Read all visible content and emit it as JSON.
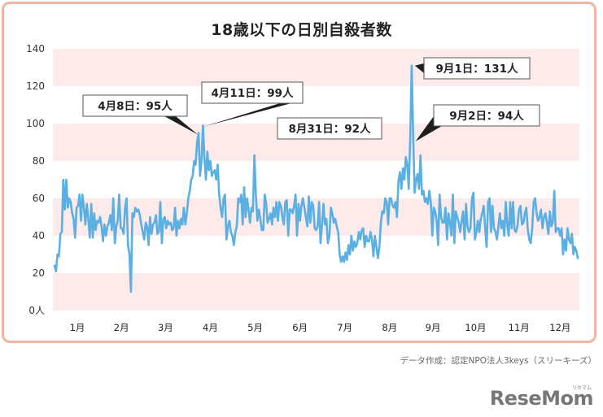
{
  "chart_data": {
    "type": "line",
    "title": "18歳以下の日別自殺者数",
    "xlabel": "",
    "ylabel": "人",
    "ylim": [
      0,
      140
    ],
    "yticks": [
      0,
      20,
      40,
      60,
      80,
      100,
      120,
      140
    ],
    "ytick_labels": [
      "0人",
      "20",
      "40",
      "60",
      "80",
      "100",
      "120",
      "140"
    ],
    "x_categories": [
      "1月",
      "2月",
      "3月",
      "4月",
      "5月",
      "6月",
      "7月",
      "8月",
      "9月",
      "10月",
      "11月",
      "12月"
    ],
    "grid": "alternating horizontal bands (pink/white) every 20",
    "legend": null,
    "series": [
      {
        "name": "18歳以下の日別自殺者数",
        "color": "#5aafe3",
        "monthly_daily_values": {
          "1": [
            24,
            21,
            30,
            29,
            41,
            42,
            70,
            54,
            70,
            55,
            60,
            58,
            52,
            49,
            39,
            55,
            56,
            62,
            48,
            62,
            55,
            46,
            57,
            49,
            39,
            57,
            39,
            52,
            43,
            48,
            47
          ],
          "2": [
            50,
            45,
            37,
            46,
            40,
            45,
            47,
            51,
            43,
            60,
            36,
            45,
            48,
            62,
            44,
            44,
            41,
            55,
            60,
            35,
            30,
            10,
            52,
            50,
            55,
            53,
            54,
            51,
            46
          ],
          "3": [
            42,
            38,
            47,
            45,
            35,
            50,
            41,
            46,
            47,
            51,
            41,
            42,
            58,
            36,
            49,
            50,
            44,
            48,
            46,
            47,
            43,
            44,
            55,
            40,
            48,
            44,
            49,
            46,
            55,
            46,
            52
          ],
          "4": [
            60,
            64,
            70,
            72,
            80,
            78,
            90,
            95,
            72,
            80,
            99,
            82,
            70,
            85,
            75,
            80,
            72,
            74,
            75,
            70,
            78,
            62,
            55,
            50,
            60,
            62,
            38,
            45,
            48,
            42
          ],
          "5": [
            40,
            35,
            42,
            45,
            60,
            58,
            62,
            46,
            66,
            50,
            60,
            54,
            47,
            55,
            53,
            83,
            62,
            48,
            54,
            49,
            43,
            43,
            62,
            57,
            47,
            49,
            52,
            46,
            55,
            50,
            58
          ],
          "6": [
            48,
            58,
            56,
            50,
            46,
            58,
            59,
            40,
            54,
            54,
            52,
            56,
            62,
            40,
            57,
            48,
            56,
            60,
            55,
            50,
            45,
            61,
            47,
            58,
            56,
            44,
            43,
            45,
            58,
            36
          ],
          "7": [
            46,
            57,
            46,
            49,
            36,
            40,
            55,
            52,
            47,
            49,
            45,
            42,
            30,
            26,
            29,
            26,
            31,
            27,
            35,
            30,
            40,
            32,
            37,
            34,
            36,
            42,
            38,
            43,
            44,
            34,
            40
          ],
          "8": [
            37,
            37,
            42,
            38,
            29,
            40,
            34,
            28,
            34,
            47,
            53,
            52,
            60,
            58,
            46,
            60,
            60,
            56,
            55,
            58,
            50,
            69,
            74,
            65,
            76,
            70,
            82,
            78,
            65,
            92
          ],
          "9": [
            131,
            94,
            63,
            70,
            73,
            65,
            83,
            62,
            64,
            58,
            60,
            57,
            64,
            58,
            40,
            55,
            53,
            48,
            35,
            62,
            50,
            47,
            47,
            55,
            38,
            52,
            47,
            40,
            62
          ],
          "10": [
            36,
            53,
            50,
            47,
            42,
            48,
            53,
            38,
            57,
            45,
            42,
            44,
            60,
            63,
            38,
            42,
            48,
            42,
            49,
            52,
            56,
            44,
            34,
            58,
            60,
            42,
            56,
            44,
            42
          ],
          "11": [
            38,
            45,
            52,
            44,
            48,
            40,
            58,
            46,
            40,
            58,
            44,
            58,
            43,
            42,
            45,
            54,
            56,
            46,
            47,
            52,
            55,
            43,
            38,
            36,
            44,
            58,
            60,
            52,
            48,
            50
          ],
          "12": [
            54,
            44,
            50,
            52,
            47,
            41,
            53,
            45,
            47,
            64,
            42,
            44,
            44,
            40,
            44,
            30,
            38,
            32,
            44,
            38,
            36,
            41,
            30,
            34,
            32,
            28
          ]
        },
        "annotations": [
          {
            "label": "4月8日：95人",
            "date": "4/8",
            "value": 95
          },
          {
            "label": "4月11日：99人",
            "date": "4/11",
            "value": 99
          },
          {
            "label": "8月31日：92人",
            "date": "8/31",
            "value": 92
          },
          {
            "label": "9月1日：131人",
            "date": "9/1",
            "value": 131
          },
          {
            "label": "9月2日：94人",
            "date": "9/2",
            "value": 94
          }
        ]
      }
    ]
  },
  "header": {
    "title": "18歳以下の日別自殺者数"
  },
  "footer": {
    "source": "データ作成：認定NPO法人3keys（スリーキーズ）",
    "logo": "ReseMom",
    "logo_sub": "リセマム"
  },
  "colors": {
    "frame_border": "#f2b2a4",
    "band": "#fdeaea",
    "line": "#5aafe3",
    "callout_pointer": "#1e1e1e"
  }
}
